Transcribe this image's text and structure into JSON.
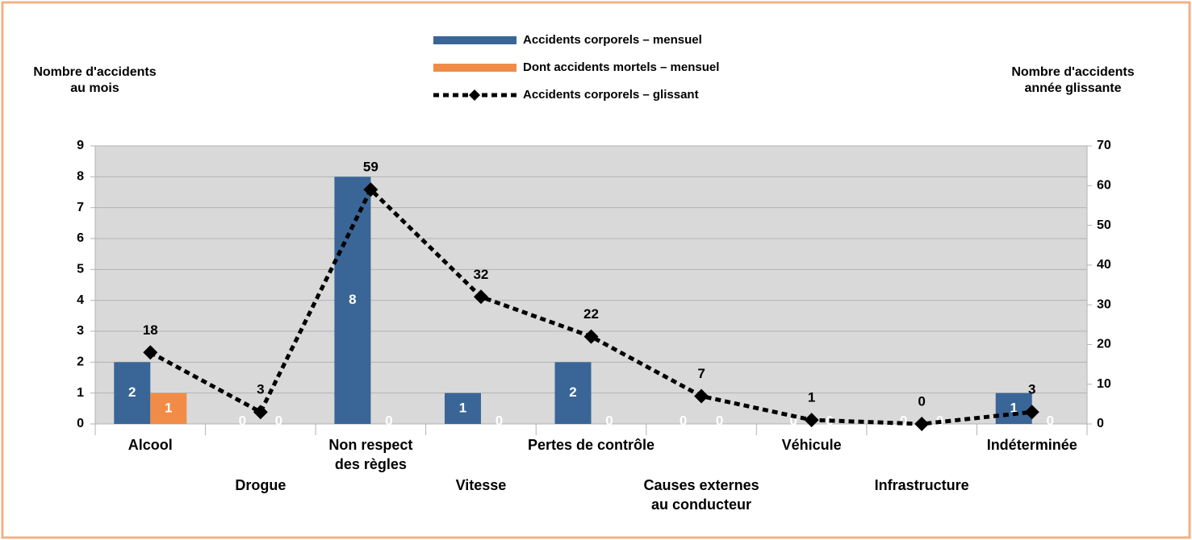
{
  "chart_data": {
    "type": "bar_line",
    "y_label": "Nombre d'accidents\nau mois",
    "y2_label": "Nombre d'accidents\nannée glissante",
    "categories": [
      "Alcool",
      "Drogue",
      "Non respect\ndes règles",
      "Vitesse",
      "Pertes de contrôle",
      "Causes externes\nau conducteur",
      "Véhicule",
      "Infrastructure",
      "Indéterminée"
    ],
    "series": [
      {
        "name": "Accidents corporels – mensuel",
        "color": "#3a6597",
        "type": "bar",
        "values": [
          2,
          0,
          8,
          1,
          2,
          0,
          0,
          0,
          1
        ]
      },
      {
        "name": "Dont accidents mortels – mensuel",
        "color": "#f08c47",
        "type": "bar",
        "values": [
          1,
          0,
          0,
          0,
          0,
          0,
          0,
          0,
          0
        ]
      },
      {
        "name": "Accidents corporels – glissant",
        "color": "#000000",
        "type": "line",
        "axis": "y2",
        "values": [
          18,
          3,
          59,
          32,
          22,
          7,
          1,
          0,
          3
        ]
      }
    ],
    "ylim": [
      0,
      9
    ],
    "yticks": [
      0,
      1,
      2,
      3,
      4,
      5,
      6,
      7,
      8,
      9
    ],
    "y2lim": [
      0,
      70
    ],
    "y2ticks": [
      0,
      10,
      20,
      30,
      40,
      50,
      60,
      70
    ],
    "grid": true,
    "legend": "top"
  }
}
